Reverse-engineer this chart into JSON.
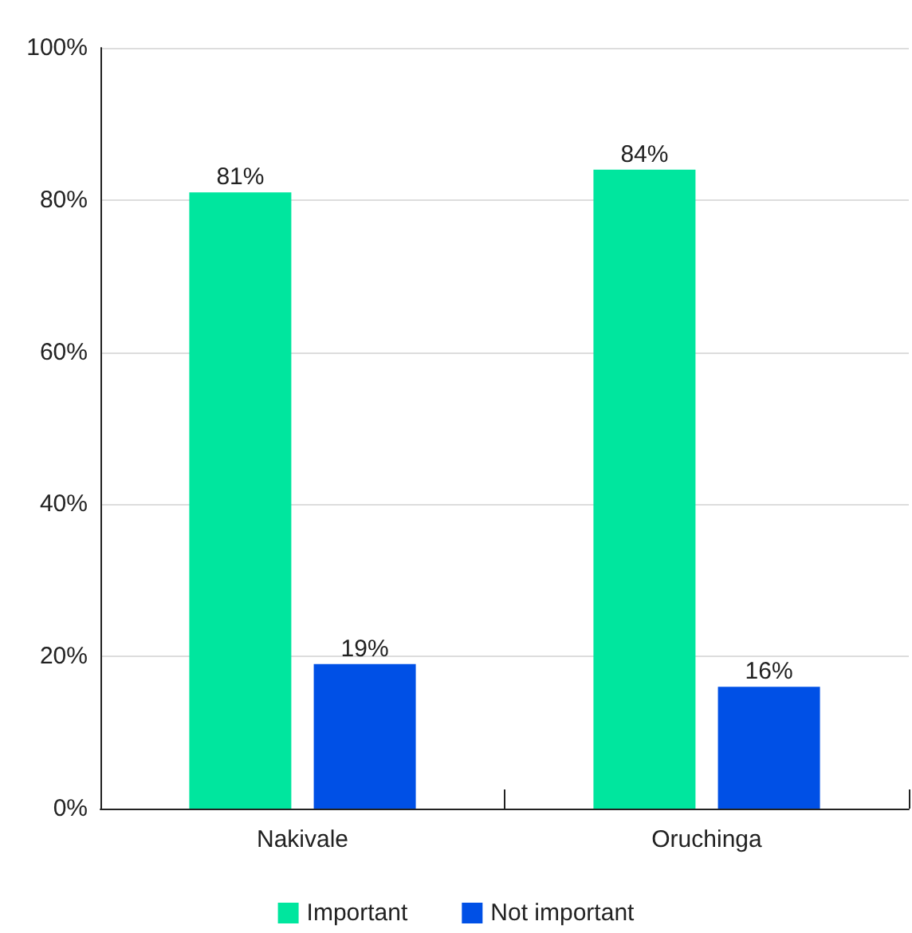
{
  "chart_data": {
    "type": "bar",
    "categories": [
      "Nakivale",
      "Oruchinga"
    ],
    "series": [
      {
        "name": "Important",
        "color": "#00e69e",
        "values": [
          81,
          84
        ],
        "value_labels": [
          "81%",
          "84%"
        ]
      },
      {
        "name": "Not important",
        "color": "#0050e6",
        "values": [
          19,
          16
        ],
        "value_labels": [
          "19%",
          "16%"
        ]
      }
    ],
    "ylim": [
      0,
      100
    ],
    "yticks": [
      {
        "value": 0,
        "label": "0%"
      },
      {
        "value": 20,
        "label": "20%"
      },
      {
        "value": 40,
        "label": "40%"
      },
      {
        "value": 60,
        "label": "60%"
      },
      {
        "value": 80,
        "label": "80%"
      },
      {
        "value": 100,
        "label": "100%"
      }
    ],
    "grid": "y",
    "legend": "bottom"
  }
}
